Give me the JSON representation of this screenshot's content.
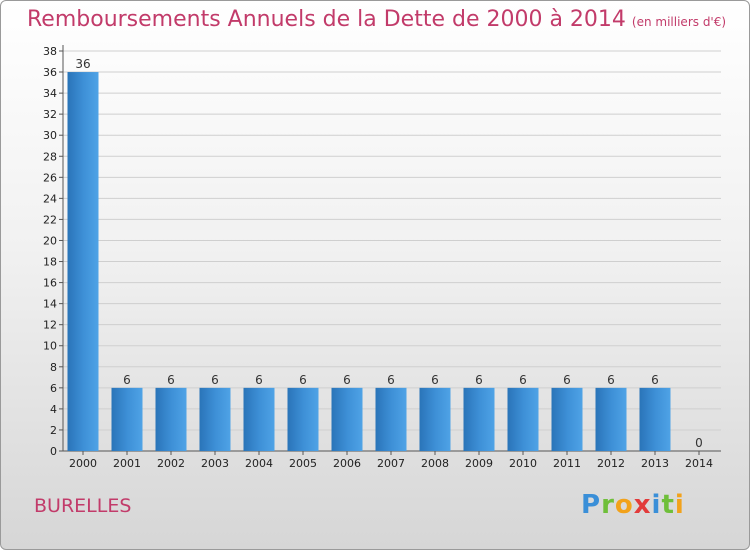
{
  "title": "Remboursements Annuels de la Dette de 2000 à 2014",
  "unit_note": "(en milliers d'€)",
  "commune": "BURELLES",
  "logo_text": "Proxiti",
  "colors": {
    "bar": "#3d8fd6",
    "bar_dark": "#2a74b8",
    "title": "#c23b6a"
  },
  "chart_data": {
    "type": "bar",
    "title": "Remboursements Annuels de la Dette de 2000 à 2014",
    "categories": [
      "2000",
      "2001",
      "2002",
      "2003",
      "2004",
      "2005",
      "2006",
      "2007",
      "2008",
      "2009",
      "2010",
      "2011",
      "2012",
      "2013",
      "2014"
    ],
    "values": [
      36,
      6,
      6,
      6,
      6,
      6,
      6,
      6,
      6,
      6,
      6,
      6,
      6,
      6,
      0
    ],
    "ylim": [
      0,
      38
    ],
    "yticks": [
      0,
      2,
      4,
      6,
      8,
      10,
      12,
      14,
      16,
      18,
      20,
      22,
      24,
      26,
      28,
      30,
      32,
      34,
      36,
      38
    ],
    "grid": true
  }
}
